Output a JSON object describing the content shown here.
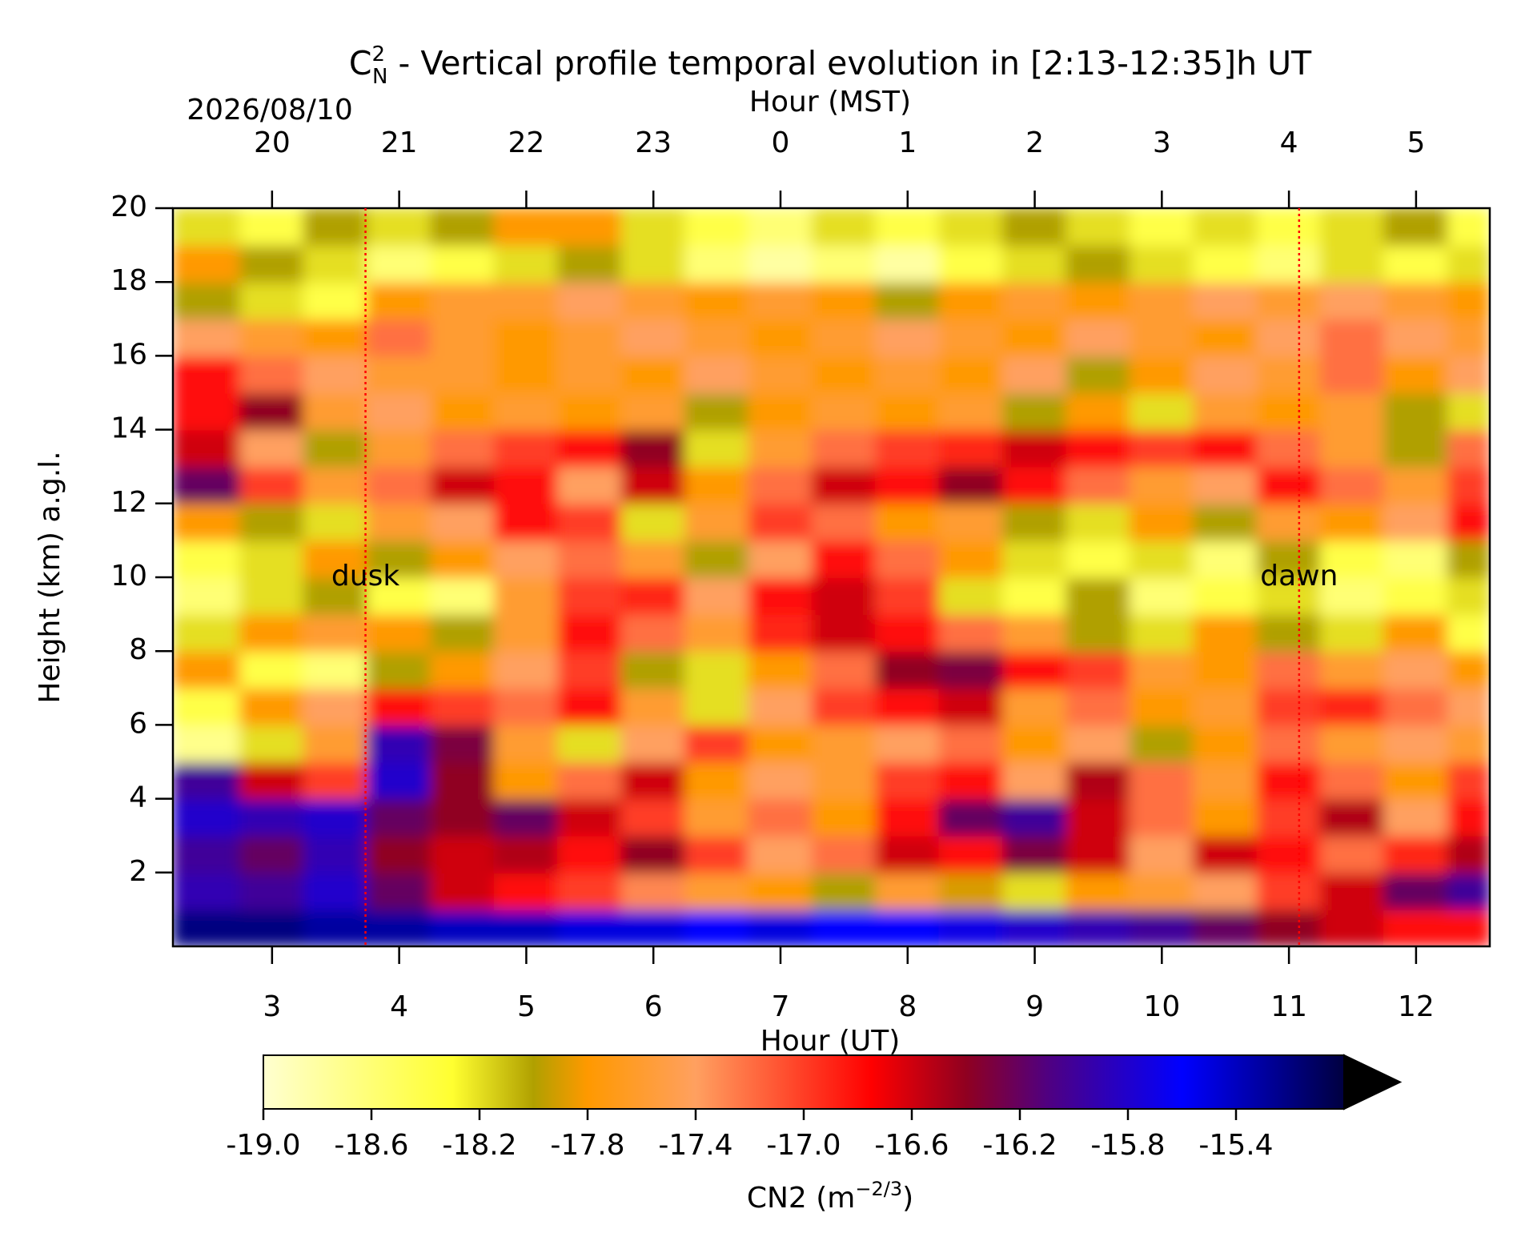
{
  "chart_data": {
    "type": "heatmap",
    "title": {
      "base": "C",
      "sup": "2",
      "sub": "N",
      "text": " - Vertical profile temporal evolution in [2:13-12:35]h UT"
    },
    "date": "2026/08/10",
    "x_label": "Hour (UT)",
    "x2_label": "Hour (MST)",
    "y_label": "Height (km) a.g.l.",
    "xlim": [
      2.22,
      12.58
    ],
    "ylim": [
      0,
      20
    ],
    "xticks": [
      3,
      4,
      5,
      6,
      7,
      8,
      9,
      10,
      11,
      12
    ],
    "x2ticks": [
      {
        "value": 3,
        "label": "20"
      },
      {
        "value": 4,
        "label": "21"
      },
      {
        "value": 5,
        "label": "22"
      },
      {
        "value": 6,
        "label": "23"
      },
      {
        "value": 7,
        "label": "0"
      },
      {
        "value": 8,
        "label": "1"
      },
      {
        "value": 9,
        "label": "2"
      },
      {
        "value": 10,
        "label": "3"
      },
      {
        "value": 11,
        "label": "4"
      },
      {
        "value": 12,
        "label": "5"
      }
    ],
    "yticks": [
      2,
      4,
      6,
      8,
      10,
      12,
      14,
      16,
      18,
      20
    ],
    "markers": [
      {
        "x": 3.735,
        "y": 10,
        "label": "dusk",
        "color": "#ff0000"
      },
      {
        "x": 11.08,
        "y": 10,
        "label": "dawn",
        "color": "#ff0000"
      }
    ],
    "colorbar": {
      "label": "CN2 (m",
      "label_sup": "−2/3",
      "label_end": ")",
      "clim": [
        -19,
        -15
      ],
      "extend": "max",
      "over_color": "#000000",
      "ticks": [
        {
          "value": -19,
          "label": "-19.0"
        },
        -18.6,
        -18.2,
        -17.8,
        -17.4,
        {
          "value": -17,
          "label": "-17.0"
        },
        -16.6,
        -16.2,
        -15.8,
        -15.4
      ],
      "colormap": [
        {
          "value": -19,
          "color": "#ffffd0"
        },
        {
          "value": -18.3,
          "color": "#ffff30"
        },
        {
          "value": -18,
          "color": "#b0a000"
        },
        {
          "value": -17.8,
          "color": "#ff9900"
        },
        {
          "value": -17.4,
          "color": "#ffa060"
        },
        {
          "value": -16.75,
          "color": "#ff0000"
        },
        {
          "value": -16.4,
          "color": "#900020"
        },
        {
          "value": -16.1,
          "color": "#500080"
        },
        {
          "value": -15.6,
          "color": "#0000ff"
        },
        {
          "value": -15,
          "color": "#000040"
        }
      ]
    },
    "x": [
      2.5,
      3,
      3.5,
      4,
      4.5,
      5,
      5.5,
      6,
      6.5,
      7,
      7.5,
      8,
      8.5,
      9,
      9.5,
      10,
      10.5,
      11,
      11.5,
      12,
      12.5
    ],
    "y": [
      0.5,
      1.5,
      2.5,
      3.5,
      4.5,
      5.5,
      6.5,
      7.5,
      8.5,
      9.5,
      10.5,
      11.5,
      12.5,
      13.5,
      14.5,
      15.5,
      16.5,
      17.5,
      18.5,
      19.5
    ],
    "z": [
      [
        -15.2,
        -15.2,
        -15.3,
        -15.3,
        -15.4,
        -15.4,
        -15.5,
        -15.5,
        -15.6,
        -15.5,
        -15.6,
        -15.6,
        -15.7,
        -15.8,
        -15.9,
        -16.0,
        -16.2,
        -16.4,
        -16.6,
        -16.8,
        -16.8
      ],
      [
        -15.9,
        -16.0,
        -15.8,
        -16.2,
        -16.6,
        -16.8,
        -17.0,
        -17.3,
        -17.6,
        -17.8,
        -18.0,
        -17.6,
        -17.9,
        -18.2,
        -17.8,
        -17.6,
        -17.4,
        -17.0,
        -16.6,
        -16.2,
        -16.0
      ],
      [
        -16.0,
        -16.2,
        -15.9,
        -16.4,
        -16.6,
        -16.5,
        -16.8,
        -16.4,
        -17.0,
        -17.4,
        -17.2,
        -16.6,
        -16.8,
        -16.3,
        -16.6,
        -17.4,
        -16.6,
        -16.8,
        -17.2,
        -16.9,
        -16.5
      ],
      [
        -15.8,
        -15.9,
        -15.8,
        -16.2,
        -16.4,
        -16.2,
        -16.6,
        -17.0,
        -17.6,
        -17.2,
        -17.8,
        -16.8,
        -16.2,
        -16.0,
        -16.6,
        -17.2,
        -17.8,
        -17.0,
        -16.5,
        -17.4,
        -16.8
      ],
      [
        -16.0,
        -16.6,
        -17.0,
        -15.8,
        -16.4,
        -17.8,
        -17.2,
        -16.6,
        -17.8,
        -17.4,
        -17.6,
        -17.0,
        -16.8,
        -17.4,
        -16.5,
        -17.2,
        -17.6,
        -16.8,
        -17.2,
        -17.8,
        -17.0
      ],
      [
        -18.7,
        -18.2,
        -17.6,
        -15.9,
        -16.3,
        -17.6,
        -18.2,
        -17.4,
        -17.0,
        -17.8,
        -17.6,
        -17.4,
        -17.2,
        -17.8,
        -17.4,
        -18.0,
        -17.8,
        -17.2,
        -17.6,
        -17.4,
        -17.6
      ],
      [
        -18.4,
        -17.8,
        -17.4,
        -16.8,
        -17.0,
        -17.2,
        -16.8,
        -17.6,
        -18.2,
        -17.4,
        -17.0,
        -16.8,
        -16.6,
        -17.6,
        -17.2,
        -17.8,
        -17.6,
        -17.0,
        -16.9,
        -17.2,
        -17.4
      ],
      [
        -17.8,
        -18.4,
        -18.6,
        -18.0,
        -17.8,
        -17.4,
        -17.0,
        -18.0,
        -18.2,
        -17.8,
        -17.2,
        -16.4,
        -16.3,
        -16.8,
        -17.0,
        -17.6,
        -17.8,
        -17.2,
        -17.6,
        -17.4,
        -17.8
      ],
      [
        -18.2,
        -17.8,
        -17.6,
        -17.8,
        -18.0,
        -17.6,
        -16.8,
        -17.2,
        -17.6,
        -16.9,
        -16.6,
        -16.8,
        -17.2,
        -17.6,
        -18.0,
        -18.2,
        -17.8,
        -18.0,
        -18.2,
        -17.8,
        -18.4
      ],
      [
        -18.6,
        -18.2,
        -18.0,
        -18.4,
        -18.6,
        -17.6,
        -17.0,
        -16.9,
        -17.4,
        -16.8,
        -16.6,
        -17.0,
        -18.2,
        -18.4,
        -18.0,
        -18.6,
        -18.4,
        -18.2,
        -18.6,
        -18.4,
        -18.2
      ],
      [
        -18.4,
        -18.2,
        -17.8,
        -18.0,
        -17.8,
        -17.4,
        -17.2,
        -17.6,
        -18.0,
        -17.4,
        -16.8,
        -17.2,
        -17.8,
        -18.2,
        -18.4,
        -18.2,
        -18.6,
        -18.0,
        -18.4,
        -18.6,
        -18.0
      ],
      [
        -17.8,
        -18.0,
        -18.2,
        -17.6,
        -17.4,
        -16.8,
        -17.0,
        -18.2,
        -17.6,
        -17.0,
        -17.2,
        -17.8,
        -17.6,
        -18.0,
        -18.2,
        -17.8,
        -18.0,
        -17.6,
        -17.8,
        -17.4,
        -16.8
      ],
      [
        -16.2,
        -17.0,
        -17.6,
        -17.2,
        -16.6,
        -16.8,
        -17.4,
        -16.6,
        -17.8,
        -17.2,
        -16.6,
        -16.8,
        -16.4,
        -16.8,
        -17.2,
        -17.6,
        -17.4,
        -16.8,
        -17.2,
        -17.6,
        -17.0
      ],
      [
        -16.6,
        -17.4,
        -18.0,
        -17.6,
        -17.2,
        -17.0,
        -16.8,
        -16.4,
        -18.2,
        -17.6,
        -17.2,
        -17.0,
        -16.9,
        -16.6,
        -16.8,
        -17.0,
        -16.8,
        -17.2,
        -17.6,
        -18.0,
        -17.2
      ],
      [
        -16.8,
        -16.4,
        -17.6,
        -17.4,
        -17.8,
        -17.6,
        -17.8,
        -17.6,
        -18.0,
        -17.8,
        -17.6,
        -17.8,
        -17.6,
        -18.0,
        -17.8,
        -18.2,
        -17.6,
        -17.8,
        -17.6,
        -18.0,
        -18.2
      ],
      [
        -16.8,
        -17.2,
        -17.4,
        -17.6,
        -17.6,
        -17.8,
        -17.6,
        -17.8,
        -17.4,
        -17.6,
        -17.8,
        -17.6,
        -17.8,
        -17.4,
        -18.0,
        -17.8,
        -17.4,
        -17.6,
        -17.2,
        -17.8,
        -17.4
      ],
      [
        -17.4,
        -17.6,
        -17.8,
        -17.2,
        -17.6,
        -17.8,
        -17.6,
        -17.4,
        -17.6,
        -17.8,
        -17.6,
        -17.4,
        -17.6,
        -17.8,
        -17.4,
        -17.6,
        -17.8,
        -17.4,
        -17.2,
        -17.4,
        -17.6
      ],
      [
        -18.0,
        -18.2,
        -18.4,
        -17.8,
        -17.6,
        -17.6,
        -17.4,
        -17.6,
        -17.8,
        -17.6,
        -17.8,
        -18.0,
        -17.8,
        -17.6,
        -17.8,
        -17.6,
        -17.4,
        -17.6,
        -17.4,
        -17.6,
        -17.8
      ],
      [
        -17.8,
        -18.0,
        -18.2,
        -18.6,
        -18.4,
        -18.2,
        -18.0,
        -18.2,
        -18.6,
        -18.8,
        -18.6,
        -18.8,
        -18.4,
        -18.2,
        -18.0,
        -18.2,
        -18.4,
        -18.6,
        -18.2,
        -18.4,
        -18.2
      ],
      [
        -18.2,
        -18.4,
        -18.0,
        -18.2,
        -18.0,
        -17.8,
        -17.8,
        -18.2,
        -18.4,
        -18.6,
        -18.2,
        -18.4,
        -18.2,
        -18.0,
        -18.2,
        -18.4,
        -18.2,
        -18.4,
        -18.2,
        -18.0,
        -18.4
      ]
    ]
  }
}
